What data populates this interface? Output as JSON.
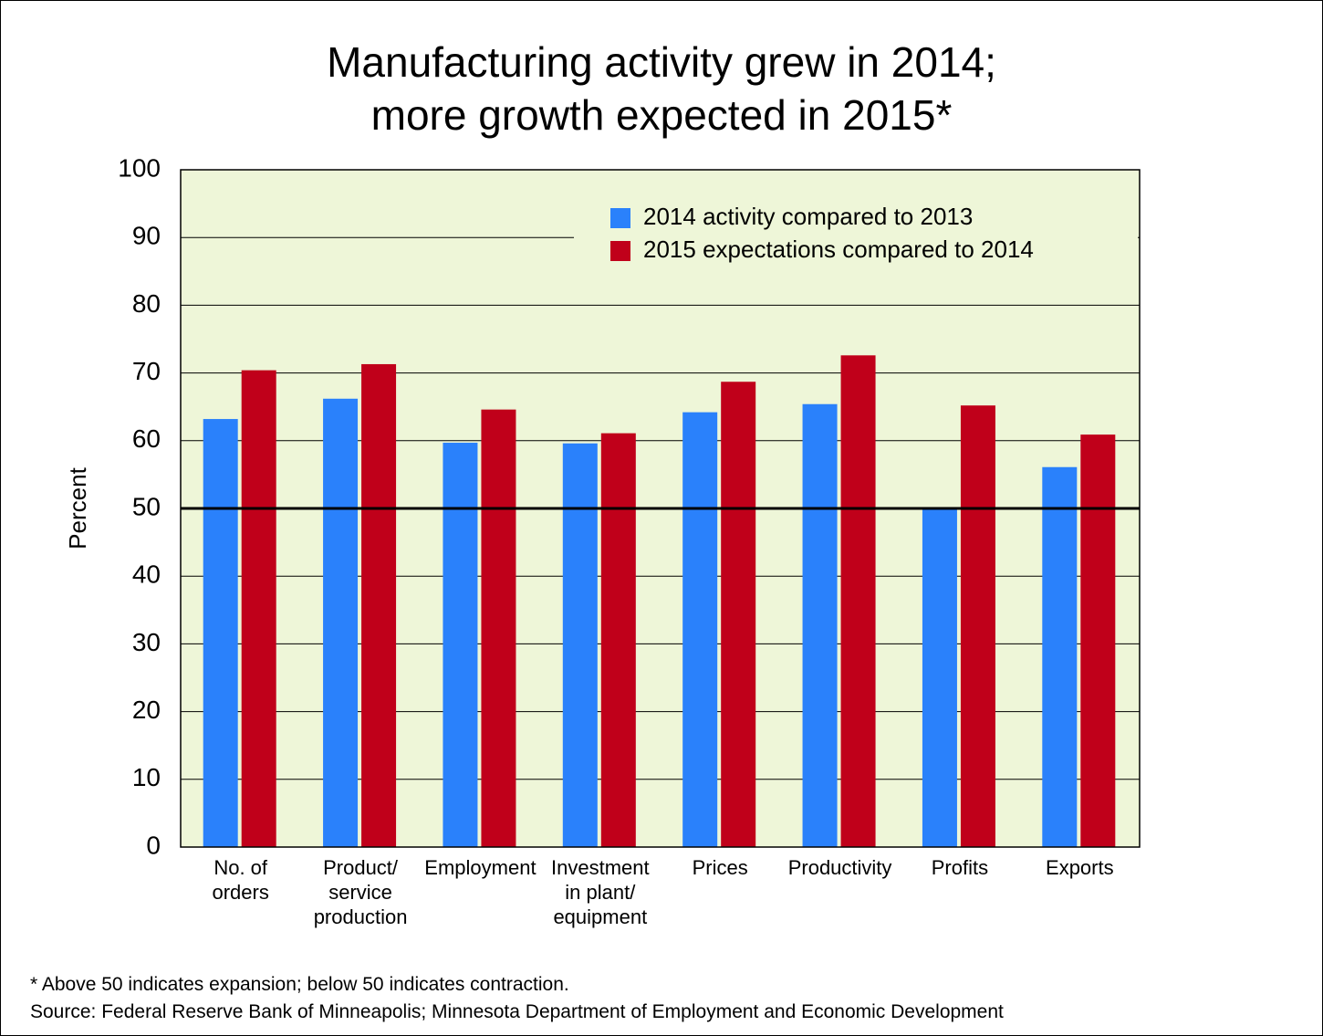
{
  "chart_data": {
    "type": "bar",
    "title": "Manufacturing activity grew in 2014;\nmore growth expected in 2015*",
    "ylabel": "Percent",
    "categories": [
      "No. of\norders",
      "Product/\nservice\nproduction",
      "Employment",
      "Investment\nin plant/\nequipment",
      "Prices",
      "Productivity",
      "Profits",
      "Exports"
    ],
    "series": [
      {
        "name": "2014 activity compared to 2013",
        "color": "#2a81fb",
        "values": [
          63.2,
          66.2,
          59.7,
          59.6,
          64.2,
          65.4,
          50,
          56.1
        ]
      },
      {
        "name": "2015 expectations compared to 2014",
        "color": "#c0001a",
        "values": [
          70.4,
          71.3,
          64.6,
          61.1,
          68.7,
          72.6,
          65.2,
          60.9
        ]
      }
    ],
    "ylim": [
      0,
      100
    ],
    "yticks": [
      0,
      10,
      20,
      30,
      40,
      50,
      60,
      70,
      80,
      90,
      100
    ],
    "grid": true,
    "reference_line": 50,
    "legend": "upper right",
    "plot_background": "#eef6d8",
    "notes": [
      "* Above 50 indicates expansion; below 50 indicates contraction.",
      "Source: Federal Reserve Bank of Minneapolis; Minnesota Department of Employment and Economic Development"
    ]
  }
}
